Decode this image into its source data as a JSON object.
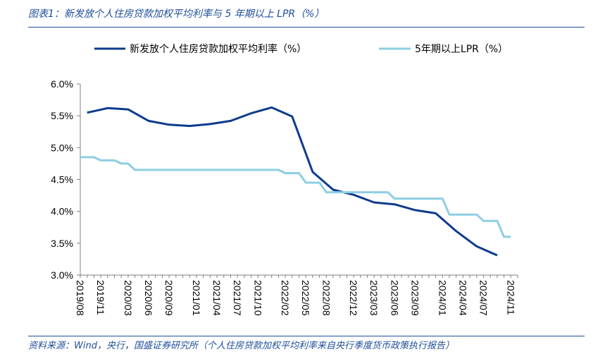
{
  "header": {
    "title": "图表1：新发放个人住房贷款加权平均利率与 5 年期以上 LPR（%）"
  },
  "footer": {
    "source": "资料来源：Wind，央行，国盛证券研究所（个人住房贷款加权平均利率来自央行季度货币政策执行报告）"
  },
  "colors": {
    "accent": "#1f4e99",
    "series_dark": "#0d3b8c",
    "series_light": "#8ccfe3",
    "axis": "#7f7f7f"
  },
  "chart_data": {
    "type": "line",
    "ylim": [
      3.0,
      6.0
    ],
    "xlim": [
      "2019-08",
      "2024-12"
    ],
    "yticks": [
      {
        "value": 3.0,
        "label": "3.0%"
      },
      {
        "value": 3.5,
        "label": "3.5%"
      },
      {
        "value": 4.0,
        "label": "4.0%"
      },
      {
        "value": 4.5,
        "label": "4.5%"
      },
      {
        "value": 5.0,
        "label": "5.0%"
      },
      {
        "value": 5.5,
        "label": "5.5%"
      },
      {
        "value": 6.0,
        "label": "6.0%"
      }
    ],
    "xticks": [
      "2019/08",
      "2019/11",
      "2020/03",
      "2020/06",
      "2020/09",
      "2021/01",
      "2021/04",
      "2021/07",
      "2021/10",
      "2022/02",
      "2022/05",
      "2022/08",
      "2022/12",
      "2023/03",
      "2023/06",
      "2023/09",
      "2024/01",
      "2024/04",
      "2024/07",
      "2024/11"
    ],
    "grid": false,
    "legend_position": "top",
    "series": [
      {
        "name": "新发放个人住房贷款加权平均利率（%）",
        "color": "#0d3b8c",
        "points": [
          [
            "2019-09",
            5.55
          ],
          [
            "2019-12",
            5.62
          ],
          [
            "2020-03",
            5.6
          ],
          [
            "2020-06",
            5.42
          ],
          [
            "2020-09",
            5.36
          ],
          [
            "2020-12",
            5.34
          ],
          [
            "2021-03",
            5.37
          ],
          [
            "2021-06",
            5.42
          ],
          [
            "2021-09",
            5.54
          ],
          [
            "2021-12",
            5.63
          ],
          [
            "2022-03",
            5.49
          ],
          [
            "2022-06",
            4.62
          ],
          [
            "2022-09",
            4.34
          ],
          [
            "2022-12",
            4.26
          ],
          [
            "2023-03",
            4.14
          ],
          [
            "2023-06",
            4.11
          ],
          [
            "2023-09",
            4.02
          ],
          [
            "2023-12",
            3.97
          ],
          [
            "2024-03",
            3.69
          ],
          [
            "2024-06",
            3.45
          ],
          [
            "2024-09",
            3.31
          ]
        ]
      },
      {
        "name": "5年期以上LPR（%）",
        "color": "#8ccfe3",
        "points": [
          [
            "2019-08",
            4.85
          ],
          [
            "2019-10",
            4.85
          ],
          [
            "2019-11",
            4.8
          ],
          [
            "2020-01",
            4.8
          ],
          [
            "2020-02",
            4.75
          ],
          [
            "2020-03",
            4.75
          ],
          [
            "2020-04",
            4.65
          ],
          [
            "2022-01",
            4.65
          ],
          [
            "2022-02",
            4.6
          ],
          [
            "2022-04",
            4.6
          ],
          [
            "2022-05",
            4.45
          ],
          [
            "2022-07",
            4.45
          ],
          [
            "2022-08",
            4.3
          ],
          [
            "2023-05",
            4.3
          ],
          [
            "2023-06",
            4.2
          ],
          [
            "2024-01",
            4.2
          ],
          [
            "2024-02",
            3.95
          ],
          [
            "2024-06",
            3.95
          ],
          [
            "2024-07",
            3.85
          ],
          [
            "2024-09",
            3.85
          ],
          [
            "2024-10",
            3.6
          ],
          [
            "2024-11",
            3.6
          ]
        ]
      }
    ]
  }
}
